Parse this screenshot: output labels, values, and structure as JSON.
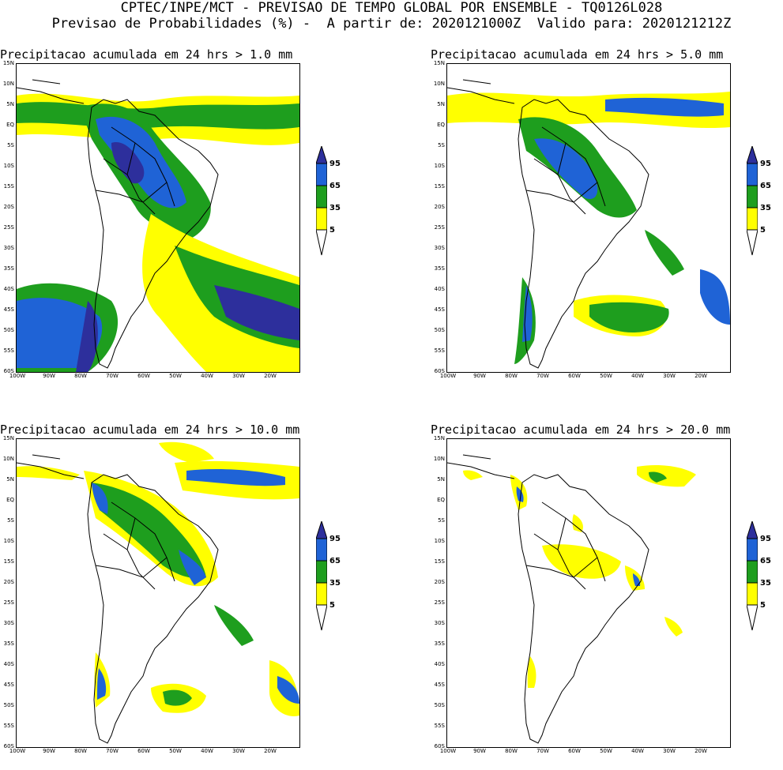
{
  "header": {
    "line1": "CPTEC/INPE/MCT - PREVISAO DE TEMPO GLOBAL POR ENSEMBLE - TQ0126L028",
    "line2": "Previsao de Probabilidades (%) -  A partir de: 2020121000Z  Valido para: 2020121212Z"
  },
  "panels": [
    {
      "title": "Precipitacao acumulada em 24 hrs > 1.0 mm"
    },
    {
      "title": "Precipitacao acumulada em 24 hrs > 5.0 mm"
    },
    {
      "title": "Precipitacao acumulada em 24 hrs > 10.0 mm"
    },
    {
      "title": "Precipitacao acumulada em 24 hrs > 20.0 mm"
    }
  ],
  "axes": {
    "lat_labels": [
      "15N",
      "10N",
      "5N",
      "EQ",
      "5S",
      "10S",
      "15S",
      "20S",
      "25S",
      "30S",
      "35S",
      "40S",
      "45S",
      "50S",
      "55S",
      "60S"
    ],
    "lon_labels": [
      "100W",
      "90W",
      "80W",
      "70W",
      "60W",
      "50W",
      "40W",
      "30W",
      "20W"
    ]
  },
  "colorbar": {
    "labels": [
      "95",
      "65",
      "35",
      "5"
    ],
    "colors": {
      "c5": "#ffff00",
      "c35": "#1e9e1e",
      "c65": "#1f63d6",
      "c95": "#2d2f9c"
    }
  }
}
